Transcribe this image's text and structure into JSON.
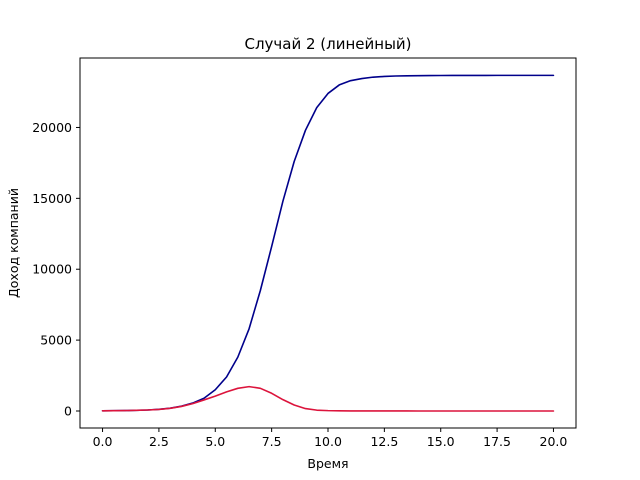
{
  "chart_data": {
    "type": "line",
    "title": "Случай 2 (линейный)",
    "xlabel": "Время",
    "ylabel": "Доход компаний",
    "xlim": [
      -1.0,
      21.0
    ],
    "ylim": [
      -1200,
      24900
    ],
    "x_ticks": [
      0,
      2.5,
      5,
      7.5,
      10,
      12.5,
      15,
      17.5,
      20
    ],
    "x_tick_labels": [
      "0.0",
      "2.5",
      "5.0",
      "7.5",
      "10.0",
      "12.5",
      "15.0",
      "17.5",
      "20.0"
    ],
    "y_ticks": [
      0,
      5000,
      10000,
      15000,
      20000
    ],
    "y_tick_labels": [
      "0",
      "5000",
      "10000",
      "15000",
      "20000"
    ],
    "grid": false,
    "legend": "none",
    "x": [
      0,
      0.5,
      1,
      1.5,
      2,
      2.5,
      3,
      3.5,
      4,
      4.5,
      5,
      5.5,
      6,
      6.5,
      7,
      7.5,
      8,
      8.5,
      9,
      9.5,
      10,
      10.5,
      11,
      11.5,
      12,
      12.5,
      13,
      13.5,
      14,
      14.5,
      15,
      15.5,
      16,
      16.5,
      17,
      17.5,
      18,
      18.5,
      19,
      19.5,
      20
    ],
    "series": [
      {
        "color": "#00008b",
        "values": [
          15,
          20,
          30,
          45,
          70,
          120,
          200,
          340,
          560,
          900,
          1500,
          2400,
          3800,
          5800,
          8500,
          11600,
          14800,
          17600,
          19800,
          21400,
          22400,
          23000,
          23300,
          23450,
          23550,
          23600,
          23630,
          23645,
          23655,
          23660,
          23665,
          23668,
          23670,
          23672,
          23673,
          23674,
          23675,
          23675,
          23675,
          23675,
          23675
        ]
      },
      {
        "color": "#dc143c",
        "values": [
          15,
          20,
          30,
          45,
          70,
          110,
          190,
          320,
          520,
          780,
          1050,
          1350,
          1600,
          1720,
          1600,
          1250,
          800,
          420,
          170,
          60,
          25,
          10,
          5,
          3,
          2,
          1,
          1,
          1,
          0,
          0,
          0,
          0,
          0,
          0,
          0,
          0,
          0,
          0,
          0,
          0,
          0
        ]
      }
    ]
  }
}
